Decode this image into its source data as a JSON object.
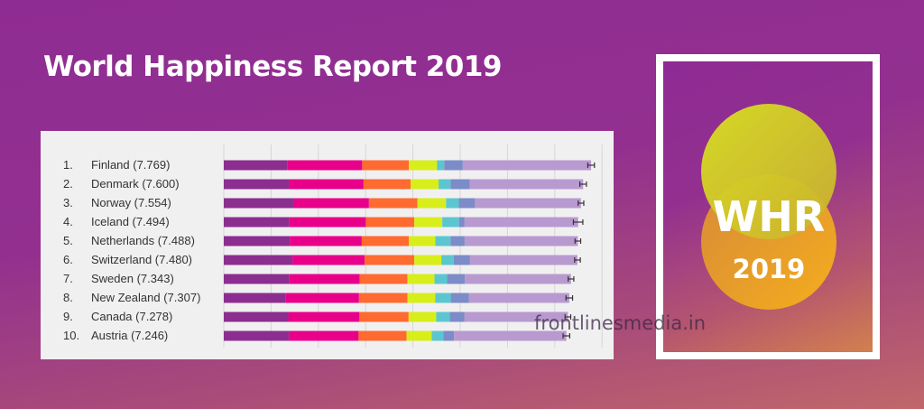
{
  "title": "World Happiness Report 2019",
  "watermark": "frontlinesmedia.in",
  "logo": {
    "text": "WHR",
    "year": "2019",
    "colors": [
      "#d8df2a",
      "#f0a820"
    ]
  },
  "chart_data": {
    "type": "bar",
    "stacked": true,
    "orientation": "horizontal",
    "xlim": [
      0,
      8
    ],
    "grid": true,
    "segment_colors": [
      "#8c2e8f",
      "#e8008a",
      "#ff6a30",
      "#d7ee1a",
      "#5cc6d0",
      "#7b8cc8",
      "#b89ad0"
    ],
    "categories": [
      "1.",
      "2.",
      "3.",
      "4.",
      "5.",
      "6.",
      "7.",
      "8.",
      "9.",
      "10."
    ],
    "labels": [
      "Finland (7.769)",
      "Denmark (7.600)",
      "Norway (7.554)",
      "Iceland (7.494)",
      "Netherlands (7.488)",
      "Switzerland (7.480)",
      "Sweden (7.343)",
      "New Zealand (7.307)",
      "Canada (7.278)",
      "Austria (7.246)"
    ],
    "scores": [
      7.769,
      7.6,
      7.554,
      7.494,
      7.488,
      7.48,
      7.343,
      7.307,
      7.278,
      7.246
    ],
    "segments": [
      [
        1.34,
        1.587,
        0.986,
        0.596,
        0.153,
        0.393,
        2.714
      ],
      [
        1.383,
        1.573,
        0.996,
        0.592,
        0.252,
        0.41,
        2.394
      ],
      [
        1.488,
        1.582,
        1.028,
        0.603,
        0.271,
        0.341,
        2.241
      ],
      [
        1.38,
        1.624,
        1.026,
        0.591,
        0.354,
        0.118,
        2.401
      ],
      [
        1.396,
        1.522,
        0.999,
        0.557,
        0.322,
        0.298,
        2.394
      ],
      [
        1.452,
        1.526,
        1.052,
        0.572,
        0.263,
        0.343,
        2.272
      ],
      [
        1.387,
        1.487,
        1.009,
        0.574,
        0.267,
        0.373,
        2.246
      ],
      [
        1.303,
        1.557,
        1.026,
        0.585,
        0.33,
        0.38,
        2.126
      ],
      [
        1.365,
        1.505,
        1.039,
        0.584,
        0.285,
        0.308,
        2.192
      ],
      [
        1.376,
        1.475,
        1.016,
        0.532,
        0.244,
        0.226,
        2.377
      ]
    ],
    "error_margin": [
      0.07,
      0.07,
      0.06,
      0.1,
      0.06,
      0.06,
      0.06,
      0.07,
      0.06,
      0.07
    ]
  }
}
